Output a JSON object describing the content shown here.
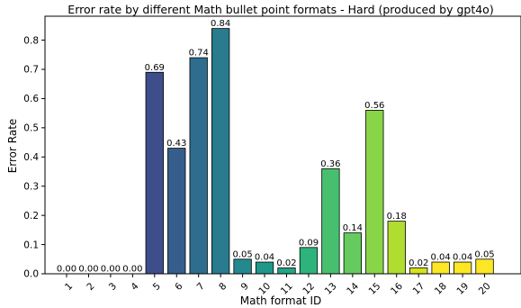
{
  "chart_data": {
    "type": "bar",
    "title": "Error rate by different Math bullet point formats - Hard (produced by gpt4o)",
    "xlabel": "Math format ID",
    "ylabel": "Error Rate",
    "categories": [
      "1",
      "2",
      "3",
      "4",
      "5",
      "6",
      "7",
      "8",
      "9",
      "10",
      "11",
      "12",
      "13",
      "14",
      "15",
      "16",
      "17",
      "18",
      "19",
      "20"
    ],
    "values": [
      0.0,
      0.0,
      0.0,
      0.0,
      0.69,
      0.43,
      0.74,
      0.84,
      0.05,
      0.04,
      0.02,
      0.09,
      0.36,
      0.14,
      0.56,
      0.18,
      0.02,
      0.04,
      0.04,
      0.05
    ],
    "data_labels": [
      "0.00",
      "0.00",
      "0.00",
      "0.00",
      "0.69",
      "0.43",
      "0.74",
      "0.84",
      "0.05",
      "0.04",
      "0.02",
      "0.09",
      "0.36",
      "0.14",
      "0.56",
      "0.18",
      "0.02",
      "0.04",
      "0.04",
      "0.05"
    ],
    "colors": [
      "#440154",
      "#481769",
      "#472a7a",
      "#433d84",
      "#3d4e8a",
      "#355e8d",
      "#2e6d8e",
      "#297b8e",
      "#23898e",
      "#1f978b",
      "#21a585",
      "#2eb37c",
      "#46c06f",
      "#65cb5e",
      "#89d548",
      "#b0dd2f",
      "#d8e219",
      "#fde725",
      "#fde725",
      "#fde725"
    ],
    "yticks": [
      "0.0",
      "0.1",
      "0.2",
      "0.3",
      "0.4",
      "0.5",
      "0.6",
      "0.7",
      "0.8"
    ],
    "ylim": [
      0,
      0.882
    ],
    "grid": false,
    "legend": "none"
  }
}
